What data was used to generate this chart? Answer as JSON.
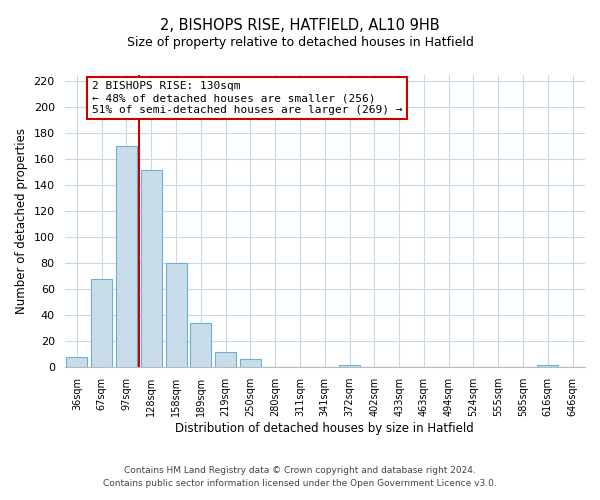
{
  "title": "2, BISHOPS RISE, HATFIELD, AL10 9HB",
  "subtitle": "Size of property relative to detached houses in Hatfield",
  "xlabel": "Distribution of detached houses by size in Hatfield",
  "ylabel": "Number of detached properties",
  "categories": [
    "36sqm",
    "67sqm",
    "97sqm",
    "128sqm",
    "158sqm",
    "189sqm",
    "219sqm",
    "250sqm",
    "280sqm",
    "311sqm",
    "341sqm",
    "372sqm",
    "402sqm",
    "433sqm",
    "463sqm",
    "494sqm",
    "524sqm",
    "555sqm",
    "585sqm",
    "616sqm",
    "646sqm"
  ],
  "values": [
    8,
    68,
    170,
    152,
    80,
    34,
    12,
    6,
    0,
    0,
    0,
    2,
    0,
    0,
    0,
    0,
    0,
    0,
    0,
    2,
    0
  ],
  "bar_color": "#c8dcea",
  "bar_edge_color": "#6aafd6",
  "vline_color": "#cc0000",
  "annotation_text": "2 BISHOPS RISE: 130sqm\n← 48% of detached houses are smaller (256)\n51% of semi-detached houses are larger (269) →",
  "annotation_box_color": "#ffffff",
  "annotation_box_edge": "#cc0000",
  "ylim": [
    0,
    225
  ],
  "yticks": [
    0,
    20,
    40,
    60,
    80,
    100,
    120,
    140,
    160,
    180,
    200,
    220
  ],
  "footer_line1": "Contains HM Land Registry data © Crown copyright and database right 2024.",
  "footer_line2": "Contains public sector information licensed under the Open Government Licence v3.0.",
  "bg_color": "#ffffff",
  "grid_color": "#c8d8e8"
}
